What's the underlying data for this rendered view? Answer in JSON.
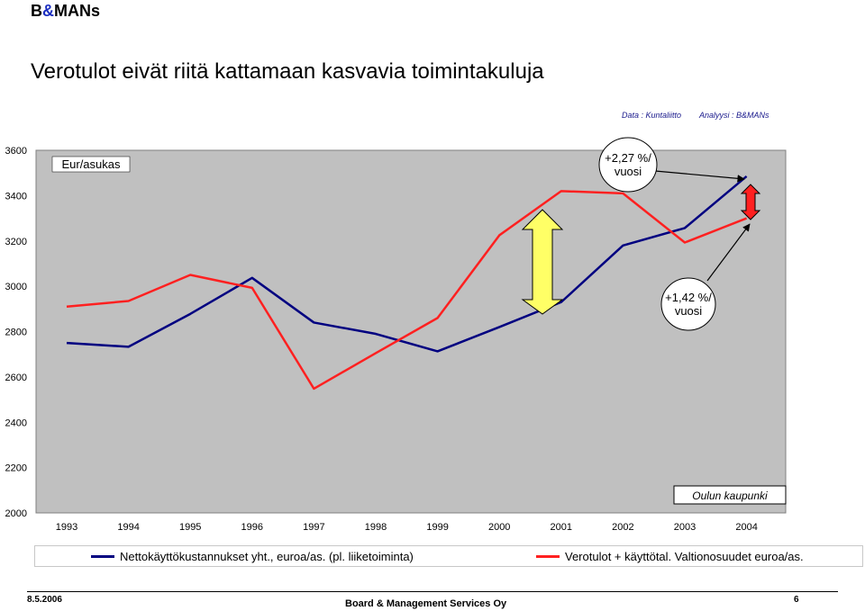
{
  "header": {
    "logo_prefix": "B",
    "logo_amp": "&",
    "logo_suffix": "MANs",
    "title": "Verotulot eivät riitä kattamaan kasvavia toimintakuluja",
    "source_data": "Data : Kuntaliitto",
    "source_analysis": "Analyysi : B&MANs"
  },
  "chart_data": {
    "type": "line",
    "title": "",
    "xlabel": "",
    "ylabel": "",
    "unit_label": "Eur/asukas",
    "region_label": "Oulun kaupunki",
    "categories": [
      "1993",
      "1994",
      "1995",
      "1996",
      "1997",
      "1998",
      "1999",
      "2000",
      "2001",
      "2002",
      "2003",
      "2004"
    ],
    "ylim": [
      2000,
      3600
    ],
    "yticks": [
      2000,
      2200,
      2400,
      2600,
      2800,
      3000,
      3200,
      3400,
      3600
    ],
    "grid": false,
    "background": "#c0c0c0",
    "legend_position": "bottom",
    "series": [
      {
        "name": "Nettokäyttökustannukset yht., euroa/as. (pl. liiketoiminta)",
        "color": "#000080",
        "values": [
          2750,
          2733,
          2878,
          3037,
          2840,
          2790,
          2713,
          2820,
          2930,
          3180,
          3257,
          3485
        ]
      },
      {
        "name": "Verotulot + käyttötal. Valtionosuudet euroa/as.",
        "color": "#ff2020",
        "values": [
          2910,
          2935,
          3050,
          2993,
          2548,
          2705,
          2860,
          3225,
          3420,
          3410,
          3193,
          3300
        ]
      }
    ],
    "annotations": {
      "bubble_top": {
        "line1": "+2,27 %/",
        "line2": "vuosi"
      },
      "bubble_mid": {
        "line1": "+1,42 %/",
        "line2": "vuosi"
      }
    }
  },
  "footer": {
    "date": "8.5.2006",
    "company": "Board & Management Services Oy",
    "page": "6"
  }
}
